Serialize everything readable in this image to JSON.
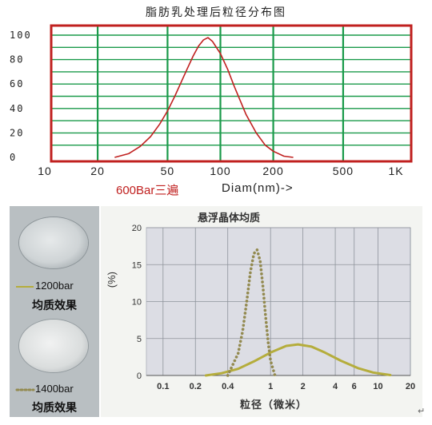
{
  "chart_data": [
    {
      "type": "line",
      "title": "脂肪乳处理后粒径分布图",
      "condition_label": "600Bar三遍",
      "xlabel": "Diam(nm)->",
      "x_scale": "log",
      "xlim": [
        10,
        1500
      ],
      "ylim": [
        0,
        100
      ],
      "x_tick_labels": [
        "10",
        "20",
        "50",
        "100",
        "200",
        "500",
        "1K"
      ],
      "x_tick_values": [
        10,
        20,
        50,
        100,
        200,
        500,
        1000
      ],
      "y_tick_labels": [
        "0",
        "20",
        "40",
        "60",
        "80",
        "100"
      ],
      "y_tick_values": [
        0,
        20,
        40,
        60,
        80,
        100
      ],
      "grid": true,
      "series": [
        {
          "color": "#c0201f",
          "x": [
            25,
            30,
            35,
            40,
            45,
            50,
            55,
            60,
            65,
            70,
            75,
            80,
            85,
            90,
            100,
            110,
            120,
            140,
            160,
            180,
            200,
            230,
            260
          ],
          "y": [
            0,
            3,
            9,
            17,
            27,
            38,
            50,
            62,
            73,
            83,
            91,
            96,
            98,
            95,
            85,
            72,
            58,
            35,
            20,
            10,
            5,
            1,
            0
          ]
        }
      ]
    },
    {
      "type": "line",
      "title": "悬浮晶体均质",
      "xlabel": "粒径（微米）",
      "ylabel": "(%)",
      "x_scale": "log",
      "xlim": [
        0.07,
        20
      ],
      "ylim": [
        0,
        20
      ],
      "x_tick_labels": [
        "0.1",
        "0.2",
        "0.4",
        "1",
        "2",
        "4",
        "6",
        "10",
        "20"
      ],
      "x_tick_values": [
        0.1,
        0.2,
        0.4,
        1,
        2,
        4,
        6,
        10,
        20
      ],
      "y_tick_labels": [
        "0",
        "5",
        "10",
        "15",
        "20"
      ],
      "y_tick_values": [
        0,
        5,
        10,
        15,
        20
      ],
      "grid": true,
      "series": [
        {
          "name": "1200bar",
          "color": "#b5ad3c",
          "style": "solid",
          "x": [
            0.25,
            0.35,
            0.5,
            0.7,
            1.0,
            1.4,
            1.8,
            2.4,
            3.2,
            4.5,
            6.5,
            9.0,
            13.0
          ],
          "y": [
            0,
            0.3,
            0.9,
            1.9,
            3.1,
            4.0,
            4.2,
            3.9,
            3.1,
            2.0,
            1.0,
            0.4,
            0.05
          ]
        },
        {
          "name": "1400bar",
          "color": "#938a50",
          "style": "dotted",
          "x": [
            0.4,
            0.5,
            0.55,
            0.6,
            0.65,
            0.7,
            0.75,
            0.8,
            0.85,
            0.9,
            0.95,
            1.0,
            1.1
          ],
          "y": [
            0,
            3,
            6,
            10,
            14,
            16.5,
            17,
            15.5,
            12,
            8,
            4.5,
            2,
            0
          ]
        }
      ],
      "legend_caption": "均质效果"
    }
  ],
  "corner_mark": "↵"
}
